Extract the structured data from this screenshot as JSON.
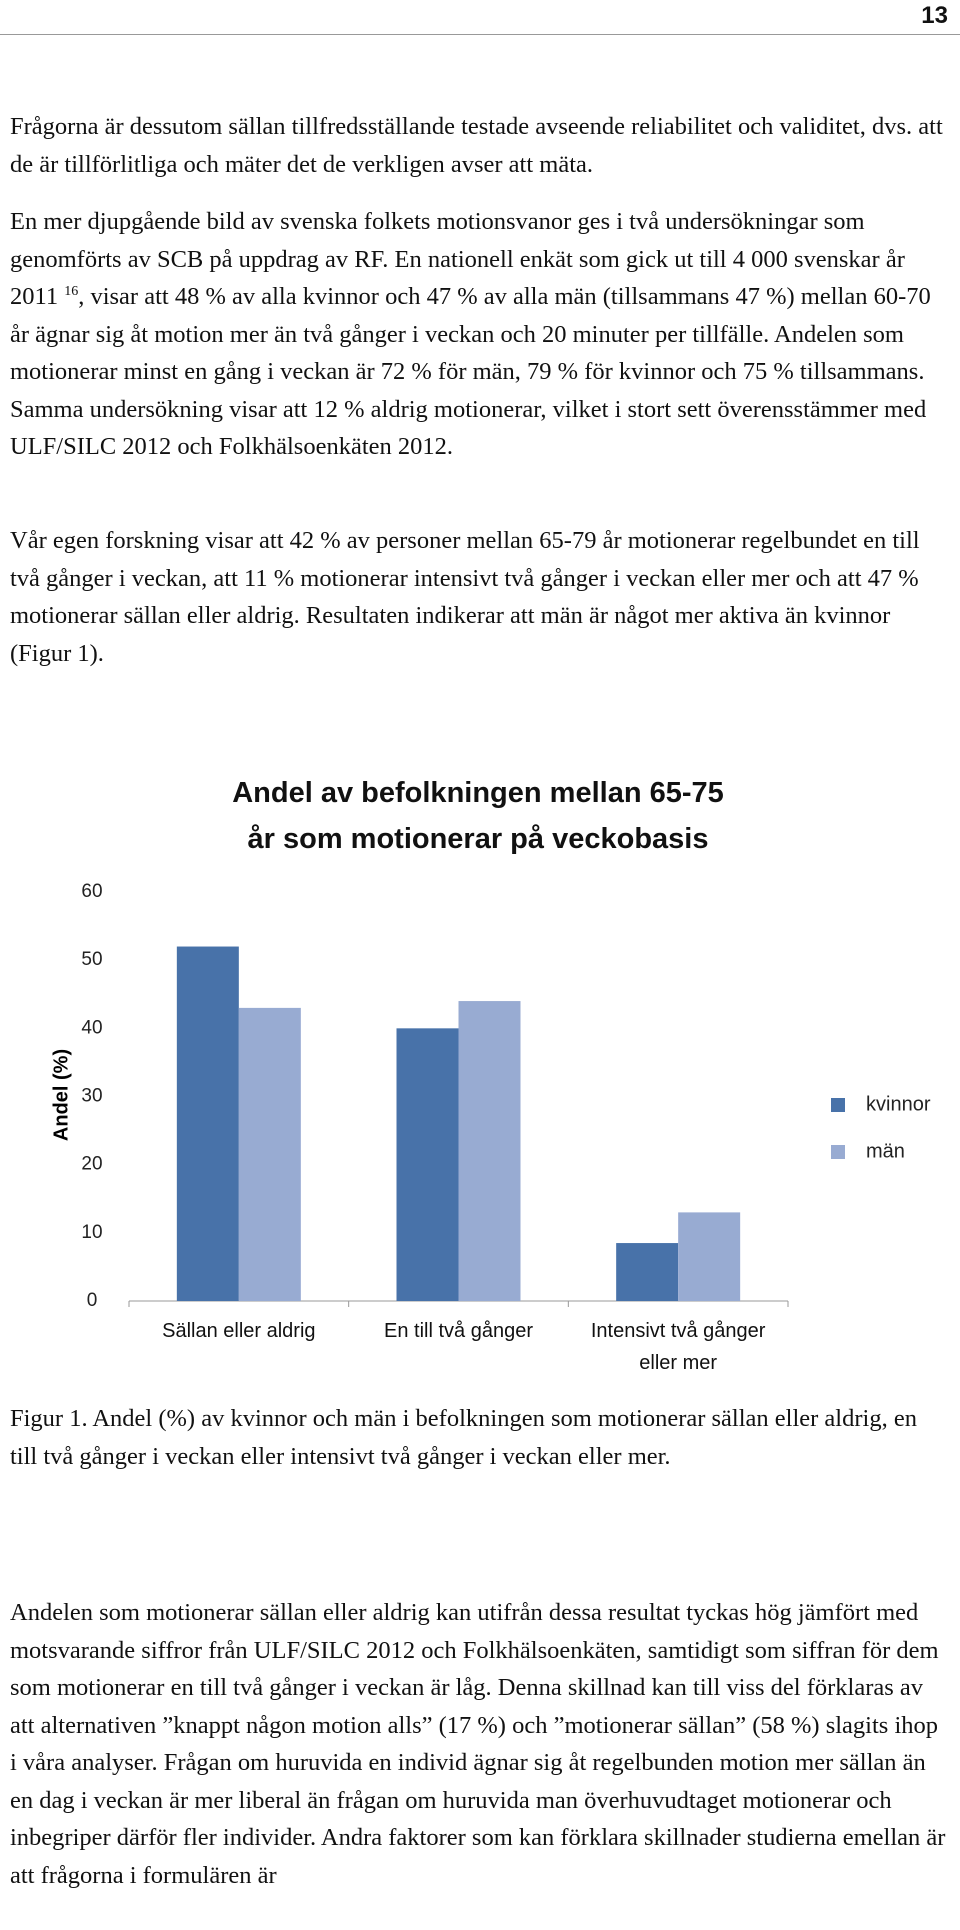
{
  "page_number": "13",
  "paragraphs_before": [
    "Frågorna är dessutom sällan tillfredsställande testade avseende reliabilitet och validitet, dvs. att de är tillförlitliga och mäter det de verkligen avser att mäta.",
    {
      "text_before": "En mer djupgående bild av svenska folkets motionsvanor ges i två undersökningar som genomförts av SCB på uppdrag av RF. En nationell enkät som gick ut till 4 000 svenskar år 2011 ",
      "superscript": "16",
      "text_after": ", visar att 48 % av alla kvinnor och 47 % av alla män (tillsammans 47 %) mellan 60-70 år ägnar sig åt motion mer än två gånger i veckan och 20 minuter per tillfälle. Andelen som motionerar minst en gång i veckan är 72 % för män, 79 % för kvinnor och 75 % tillsammans. Samma undersökning visar att 12 % aldrig motionerar, vilket i stort sett överensstämmer med ULF/SILC 2012 och Folkhälsoenkäten 2012."
    },
    "Vår egen forskning visar att 42 % av personer mellan 65-79 år motionerar regelbundet en till två gånger i veckan, att 11 % motionerar intensivt två gånger i veckan eller mer och att 47 % motionerar sällan eller aldrig. Resultaten indikerar att män är något mer aktiva än kvinnor (Figur 1)."
  ],
  "chart_data": {
    "type": "bar",
    "title": "Andel av befolkningen mellan 65-75 år som motionerar på veckobasis",
    "y_label": "Andel (%)",
    "categories": [
      "Sällan eller aldrig",
      "En till två gånger",
      "Intensivt två gånger eller mer"
    ],
    "series": [
      {
        "name": "kvinnor",
        "color": "#4872a9",
        "values": [
          52,
          40,
          8.5
        ]
      },
      {
        "name": "män",
        "color": "#98abd2",
        "values": [
          43,
          44,
          13
        ]
      }
    ],
    "ylim": [
      0,
      60
    ],
    "yticks": [
      0,
      10,
      20,
      30,
      40,
      50,
      60
    ],
    "grid": false,
    "legend": "right"
  },
  "caption": "Figur 1. Andel (%) av kvinnor och män i befolkningen som motionerar sällan eller aldrig, en till två gånger i veckan eller intensivt två gånger i veckan eller mer.",
  "paragraphs_after": [
    "Andelen som motionerar sällan eller aldrig kan utifrån dessa resultat tyckas hög jämfört med motsvarande siffror från ULF/SILC 2012 och Folkhälsoenkäten, samtidigt som siffran för dem som motionerar en till två gånger i veckan är låg. Denna skillnad kan till viss del förklaras av att alternativen ”knappt någon motion alls” (17 %) och ”motionerar sällan” (58 %) slagits ihop i våra analyser. Frågan om huruvida en individ ägnar sig åt regelbunden motion mer sällan än en dag i veckan är mer liberal än frågan om huruvida man överhuvudtaget motionerar och inbegriper därför fler individer. Andra faktorer som kan förklara skillnader studierna emellan är att frågorna i formulären är"
  ]
}
